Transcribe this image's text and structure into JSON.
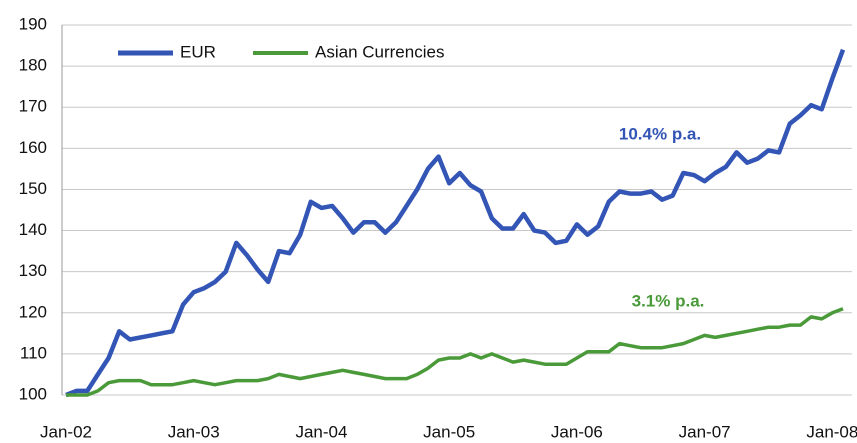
{
  "chart_data": {
    "type": "line",
    "categories": [
      "Jan-02",
      null,
      null,
      null,
      null,
      null,
      null,
      null,
      null,
      null,
      null,
      null,
      "Jan-03",
      null,
      null,
      null,
      null,
      null,
      null,
      null,
      null,
      null,
      null,
      null,
      "Jan-04",
      null,
      null,
      null,
      null,
      null,
      null,
      null,
      null,
      null,
      null,
      null,
      "Jan-05",
      null,
      null,
      null,
      null,
      null,
      null,
      null,
      null,
      null,
      null,
      null,
      "Jan-06",
      null,
      null,
      null,
      null,
      null,
      null,
      null,
      null,
      null,
      null,
      null,
      "Jan-07",
      null,
      null,
      null,
      null,
      null,
      null,
      null,
      null,
      null,
      null,
      null,
      "Jan-08",
      null
    ],
    "series": [
      {
        "name": "EUR",
        "color": "#3355b5",
        "values": [
          100,
          101,
          101,
          105,
          109,
          115.5,
          113.5,
          114,
          114.5,
          115,
          115.5,
          122,
          125,
          126,
          127.5,
          130,
          137,
          134,
          130.5,
          127.5,
          135,
          134.5,
          139,
          147,
          145.5,
          146,
          143,
          139.5,
          142,
          142,
          139.5,
          142,
          146,
          150,
          155,
          158,
          151.5,
          154,
          151,
          149.5,
          143,
          140.5,
          140.5,
          144,
          140,
          139.5,
          137,
          137.5,
          141.5,
          139,
          141,
          147,
          149.5,
          149,
          149,
          149.5,
          147.5,
          148.5,
          154,
          153.5,
          152,
          154,
          155.5,
          159,
          156.5,
          157.5,
          159.5,
          159,
          166,
          168,
          170.5,
          169.5,
          177,
          184
        ]
      },
      {
        "name": "Asian Currencies",
        "color": "#4a9a3a",
        "values": [
          100,
          100,
          100,
          101,
          103,
          103.5,
          103.5,
          103.5,
          102.5,
          102.5,
          102.5,
          103,
          103.5,
          103,
          102.5,
          103,
          103.5,
          103.5,
          103.5,
          104,
          105,
          104.5,
          104,
          104.5,
          105,
          105.5,
          106,
          105.5,
          105,
          104.5,
          104,
          104,
          104,
          105,
          106.5,
          108.5,
          109,
          109,
          110,
          109,
          110,
          109,
          108,
          108.5,
          108,
          107.5,
          107.5,
          107.5,
          109,
          110.5,
          110.5,
          110.5,
          112.5,
          112,
          111.5,
          111.5,
          111.5,
          112,
          112.5,
          113.5,
          114.5,
          114,
          114.5,
          115,
          115.5,
          116,
          116.5,
          116.5,
          117,
          117,
          119,
          118.5,
          120,
          121
        ]
      }
    ],
    "annotations": [
      "10.4% p.a.",
      "3.1% p.a."
    ],
    "ylim": [
      100,
      190
    ],
    "yticks": [
      100,
      110,
      120,
      130,
      140,
      150,
      160,
      170,
      180,
      190
    ],
    "grid": true,
    "legend": "top-left"
  }
}
